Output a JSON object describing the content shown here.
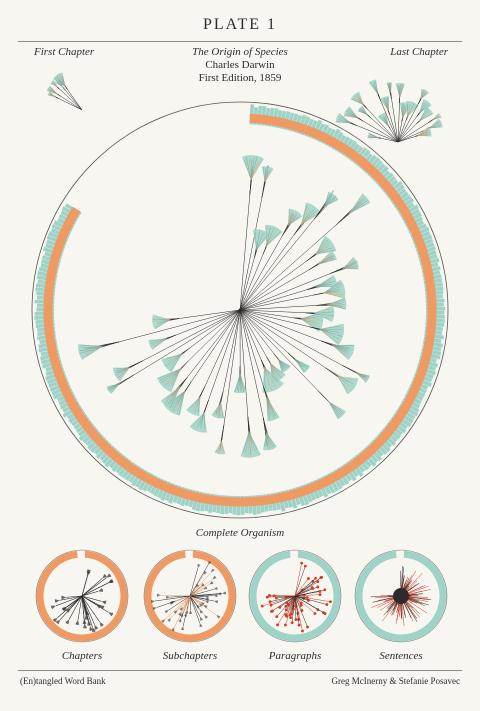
{
  "plate": {
    "title": "PLATE 1"
  },
  "labels": {
    "first_chapter": "First Chapter",
    "last_chapter": "Last Chapter",
    "complete_organism": "Complete Organism"
  },
  "book": {
    "title": "The Origin of Species",
    "author": "Charles Darwin",
    "edition": "First Edition, 1859"
  },
  "small_multiples": [
    "Chapters",
    "Subchapters",
    "Paragraphs",
    "Sentences"
  ],
  "footer": {
    "left": "(En)tangled Word Bank",
    "right": "Greg McInerny & Stefanie Posavec"
  },
  "colors": {
    "teal": "#9fd3c7",
    "orange": "#ee9a62",
    "ink": "#2c2c2c",
    "red": "#d9391f",
    "paper": "#f7f6f1"
  }
}
